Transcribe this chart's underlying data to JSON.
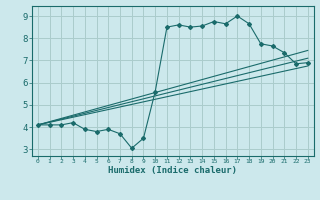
{
  "xlabel": "Humidex (Indice chaleur)",
  "bg_color": "#cce8ec",
  "grid_color": "#aacccc",
  "line_color": "#1a6b6b",
  "xlim": [
    -0.5,
    23.5
  ],
  "ylim": [
    2.7,
    9.45
  ],
  "xticks": [
    0,
    1,
    2,
    3,
    4,
    5,
    6,
    7,
    8,
    9,
    10,
    11,
    12,
    13,
    14,
    15,
    16,
    17,
    18,
    19,
    20,
    21,
    22,
    23
  ],
  "yticks": [
    3,
    4,
    5,
    6,
    7,
    8,
    9
  ],
  "main_x": [
    0,
    1,
    2,
    3,
    4,
    5,
    6,
    7,
    8,
    9,
    10,
    11,
    12,
    13,
    14,
    15,
    16,
    17,
    18,
    19,
    20,
    21,
    22,
    23
  ],
  "main_y": [
    4.1,
    4.1,
    4.1,
    4.2,
    3.9,
    3.8,
    3.9,
    3.7,
    3.05,
    3.5,
    5.6,
    8.5,
    8.6,
    8.5,
    8.55,
    8.75,
    8.65,
    9.0,
    8.65,
    7.75,
    7.65,
    7.35,
    6.85,
    6.9
  ],
  "trend1_x": [
    0,
    23
  ],
  "trend1_y": [
    4.1,
    7.45
  ],
  "trend2_x": [
    0,
    23
  ],
  "trend2_y": [
    4.1,
    7.1
  ],
  "trend3_x": [
    0,
    23
  ],
  "trend3_y": [
    4.1,
    6.75
  ]
}
